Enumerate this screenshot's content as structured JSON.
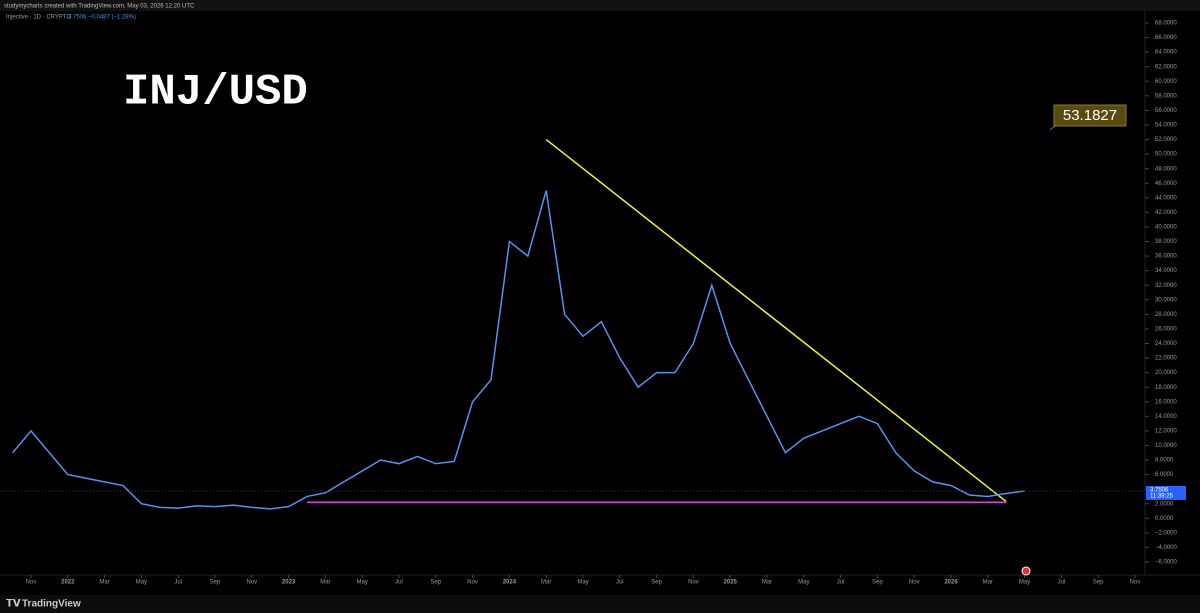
{
  "chart_data": {
    "type": "line",
    "header": "studymycharts created with TradingView.com, May 03, 2026 12:20 UTC",
    "legend_name": "Injective · 1D · CRYPTO",
    "last_price": "3.7506",
    "change": "−0.0487 (−1.28%)",
    "title": "INJ/USD",
    "countdown": "11:39:25",
    "brand": "TradingView",
    "series": [
      {
        "name": "Injective",
        "color": "#5b8ff0",
        "values": [
          9,
          12,
          9,
          6,
          5.5,
          5,
          4.5,
          2,
          1.5,
          1.4,
          1.7,
          1.6,
          1.8,
          1.5,
          1.3,
          1.6,
          3,
          3.5,
          5,
          6.5,
          8,
          7.5,
          8.5,
          7.5,
          7.8,
          16,
          19,
          38,
          36,
          45,
          28,
          25,
          27,
          22,
          18,
          20,
          20,
          24,
          32,
          24,
          19,
          14,
          9,
          11,
          12,
          13,
          14,
          13,
          9,
          6.5,
          5,
          4.5,
          3.2,
          3,
          3.4,
          3.75
        ]
      }
    ],
    "x": [
      "2021-10",
      "2021-11",
      "2021-12",
      "2022-01",
      "2022-02",
      "2022-03",
      "2022-04",
      "2022-05",
      "2022-06",
      "2022-07",
      "2022-08",
      "2022-09",
      "2022-10",
      "2022-11",
      "2022-12",
      "2023-01",
      "2023-02",
      "2023-03",
      "2023-04",
      "2023-05",
      "2023-06",
      "2023-07",
      "2023-08",
      "2023-09",
      "2023-10",
      "2023-11",
      "2023-12",
      "2024-01",
      "2024-02",
      "2024-03",
      "2024-04",
      "2024-05",
      "2024-06",
      "2024-07",
      "2024-08",
      "2024-09",
      "2024-10",
      "2024-11",
      "2024-12",
      "2025-01",
      "2025-02",
      "2025-03",
      "2025-04",
      "2025-05",
      "2025-06",
      "2025-07",
      "2025-08",
      "2025-09",
      "2025-10",
      "2025-11",
      "2025-12",
      "2026-01",
      "2026-02",
      "2026-03",
      "2026-04",
      "2026-05"
    ],
    "xticks": [
      {
        "value": "2021-11",
        "label": "Nov"
      },
      {
        "value": "2022-01",
        "label": "2022"
      },
      {
        "value": "2022-03",
        "label": "Mar"
      },
      {
        "value": "2022-05",
        "label": "May"
      },
      {
        "value": "2022-07",
        "label": "Jul"
      },
      {
        "value": "2022-09",
        "label": "Sep"
      },
      {
        "value": "2022-11",
        "label": "Nov"
      },
      {
        "value": "2023-01",
        "label": "2023"
      },
      {
        "value": "2023-03",
        "label": "Mar"
      },
      {
        "value": "2023-05",
        "label": "May"
      },
      {
        "value": "2023-07",
        "label": "Jul"
      },
      {
        "value": "2023-09",
        "label": "Sep"
      },
      {
        "value": "2023-11",
        "label": "Nov"
      },
      {
        "value": "2024-01",
        "label": "2024"
      },
      {
        "value": "2024-03",
        "label": "Mar"
      },
      {
        "value": "2024-05",
        "label": "May"
      },
      {
        "value": "2024-07",
        "label": "Jul"
      },
      {
        "value": "2024-09",
        "label": "Sep"
      },
      {
        "value": "2024-11",
        "label": "Nov"
      },
      {
        "value": "2025-01",
        "label": "2025"
      },
      {
        "value": "2025-03",
        "label": "Mar"
      },
      {
        "value": "2025-05",
        "label": "May"
      },
      {
        "value": "2025-07",
        "label": "Jul"
      },
      {
        "value": "2025-09",
        "label": "Sep"
      },
      {
        "value": "2025-11",
        "label": "Nov"
      },
      {
        "value": "2026-01",
        "label": "2026"
      },
      {
        "value": "2026-03",
        "label": "Mar"
      },
      {
        "value": "2026-05",
        "label": "May"
      },
      {
        "value": "2026-07",
        "label": "Jul"
      },
      {
        "value": "2026-09",
        "label": "Sep"
      },
      {
        "value": "2026-11",
        "label": "Nov"
      }
    ],
    "ylim": [
      -6,
      68
    ],
    "yticks": [
      {
        "value": 68,
        "label": "68.0000"
      },
      {
        "value": 66,
        "label": "66.0000"
      },
      {
        "value": 64,
        "label": "64.0000"
      },
      {
        "value": 62,
        "label": "62.0000"
      },
      {
        "value": 60,
        "label": "60.0000"
      },
      {
        "value": 58,
        "label": "58.0000"
      },
      {
        "value": 56,
        "label": "56.0000"
      },
      {
        "value": 54,
        "label": "54.0000"
      },
      {
        "value": 52,
        "label": "52.0000"
      },
      {
        "value": 50,
        "label": "50.0000"
      },
      {
        "value": 48,
        "label": "48.0000"
      },
      {
        "value": 46,
        "label": "46.0000"
      },
      {
        "value": 44,
        "label": "44.0000"
      },
      {
        "value": 42,
        "label": "42.0000"
      },
      {
        "value": 40,
        "label": "40.0000"
      },
      {
        "value": 38,
        "label": "38.0000"
      },
      {
        "value": 36,
        "label": "36.0000"
      },
      {
        "value": 34,
        "label": "34.0000"
      },
      {
        "value": 32,
        "label": "32.0000"
      },
      {
        "value": 30,
        "label": "30.0000"
      },
      {
        "value": 28,
        "label": "28.0000"
      },
      {
        "value": 26,
        "label": "26.0000"
      },
      {
        "value": 24,
        "label": "24.0000"
      },
      {
        "value": 22,
        "label": "22.0000"
      },
      {
        "value": 20,
        "label": "20.0000"
      },
      {
        "value": 18,
        "label": "18.0000"
      },
      {
        "value": 16,
        "label": "16.0000"
      },
      {
        "value": 14,
        "label": "14.0000"
      },
      {
        "value": 12,
        "label": "12.0000"
      },
      {
        "value": 10,
        "label": "10.0000"
      },
      {
        "value": 8,
        "label": "8.0000"
      },
      {
        "value": 6,
        "label": "6.0000"
      },
      {
        "value": 4,
        "label": "4.0000"
      },
      {
        "value": 2,
        "label": "2.0000"
      },
      {
        "value": 0,
        "label": "0.0000"
      },
      {
        "value": -2,
        "label": "−2.0000"
      },
      {
        "value": -4,
        "label": "−4.0000"
      },
      {
        "value": -6,
        "label": "−6.0000"
      }
    ],
    "drawings": [
      {
        "color": "#f2f23a",
        "x": [
          "2024-03",
          "2026-04"
        ],
        "y": [
          52,
          2.3
        ]
      },
      {
        "color": "#e040e0",
        "x": [
          "2023-02",
          "2026-04"
        ],
        "y": [
          2.2,
          2.2
        ]
      }
    ],
    "annotations": [
      {
        "text": "53.1827"
      }
    ]
  }
}
